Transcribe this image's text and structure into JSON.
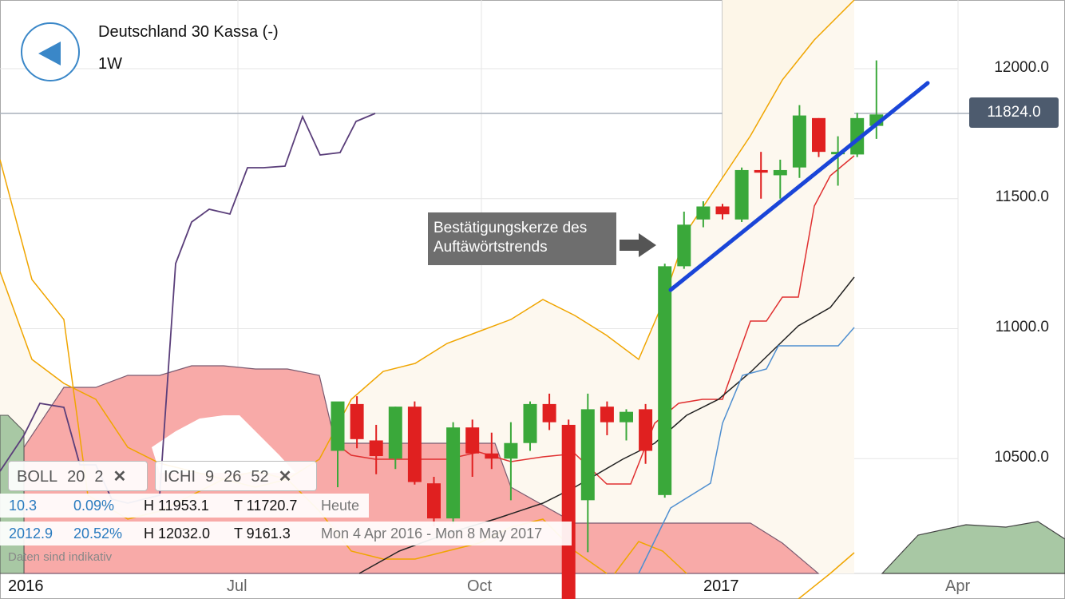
{
  "header": {
    "title": "Deutschland 30 Kassa (-)",
    "interval": "1W"
  },
  "colors": {
    "up": "#3aa83a",
    "down": "#e02020",
    "trendline": "#1a45d8",
    "boll": "#f0a500",
    "tenkan": "#e03030",
    "kijun": "#222222",
    "ichi_blue": "#4f8fd0",
    "chikou": "#5a3e7a",
    "cloud_red": "#f8aaa8",
    "cloud_green": "#a8c8a4",
    "price_tag": "#4d5b6e",
    "accent": "#3a87c8"
  },
  "y_axis": {
    "labels": [
      "12000.0",
      "11500.0",
      "11000.0",
      "10500.0"
    ]
  },
  "price_tag": "11824.0",
  "x_axis": {
    "labels": [
      "2016",
      "Jul",
      "Oct",
      "2017",
      "Apr"
    ]
  },
  "annotation": {
    "line1": "Bestätigungskerze des",
    "line2": "Auftäwörtstrends"
  },
  "indicators": {
    "boll": {
      "name": "BOLL",
      "p1": "20",
      "p2": "2"
    },
    "ichi": {
      "name": "ICHI",
      "p1": "9",
      "p2": "26",
      "p3": "52"
    }
  },
  "stats_row1": {
    "a": "10.3",
    "b": "0.09%",
    "h": "H 11953.1",
    "t": "T 11720.7",
    "period": "Heute"
  },
  "stats_row2": {
    "a": "2012.9",
    "b": "20.52%",
    "h": "H 12032.0",
    "t": "T 9161.3",
    "period": "Mon 4 Apr 2016 - Mon 8 May 2017"
  },
  "disclaimer": "Daten sind indikativ",
  "chart_data": {
    "type": "candlestick",
    "title": "Deutschland 30 Kassa (-)",
    "timeframe": "1W",
    "ylim": [
      9900,
      12200
    ],
    "candles": [
      {
        "o": 10530,
        "h": 10710,
        "l": 10390,
        "c": 10720
      },
      {
        "o": 10710,
        "h": 10740,
        "l": 10540,
        "c": 10575
      },
      {
        "o": 10570,
        "h": 10630,
        "l": 10440,
        "c": 10510
      },
      {
        "o": 10500,
        "h": 10700,
        "l": 10460,
        "c": 10700
      },
      {
        "o": 10700,
        "h": 10720,
        "l": 10400,
        "c": 10410
      },
      {
        "o": 10405,
        "h": 10430,
        "l": 10240,
        "c": 10270
      },
      {
        "o": 10270,
        "h": 10640,
        "l": 10250,
        "c": 10620
      },
      {
        "o": 10620,
        "h": 10650,
        "l": 10430,
        "c": 10520
      },
      {
        "o": 10520,
        "h": 10600,
        "l": 10460,
        "c": 10500
      },
      {
        "o": 10500,
        "h": 10640,
        "l": 10340,
        "c": 10560
      },
      {
        "o": 10560,
        "h": 10720,
        "l": 10530,
        "c": 10710
      },
      {
        "o": 10710,
        "h": 10750,
        "l": 10610,
        "c": 10640
      },
      {
        "o": 10630,
        "h": 10650,
        "l": 9900,
        "c": 9950
      },
      {
        "o": 10340,
        "h": 10750,
        "l": 10140,
        "c": 10690
      },
      {
        "o": 10700,
        "h": 10720,
        "l": 10590,
        "c": 10640
      },
      {
        "o": 10640,
        "h": 10690,
        "l": 10570,
        "c": 10680
      },
      {
        "o": 10690,
        "h": 10710,
        "l": 10480,
        "c": 10530
      },
      {
        "o": 10360,
        "h": 11250,
        "l": 10350,
        "c": 11240
      },
      {
        "o": 11240,
        "h": 11450,
        "l": 11230,
        "c": 11400
      },
      {
        "o": 11420,
        "h": 11490,
        "l": 11390,
        "c": 11470
      },
      {
        "o": 11470,
        "h": 11480,
        "l": 11420,
        "c": 11440
      },
      {
        "o": 11420,
        "h": 11620,
        "l": 11410,
        "c": 11610
      },
      {
        "o": 11610,
        "h": 11680,
        "l": 11500,
        "c": 11600
      },
      {
        "o": 11590,
        "h": 11650,
        "l": 11500,
        "c": 11610
      },
      {
        "o": 11620,
        "h": 11860,
        "l": 11580,
        "c": 11820
      },
      {
        "o": 11810,
        "h": 11810,
        "l": 11660,
        "c": 11680
      },
      {
        "o": 11680,
        "h": 11740,
        "l": 11550,
        "c": 11680
      },
      {
        "o": 11670,
        "h": 11830,
        "l": 11660,
        "c": 11810
      },
      {
        "o": 11780,
        "h": 12032,
        "l": 11730,
        "c": 11824
      }
    ]
  }
}
